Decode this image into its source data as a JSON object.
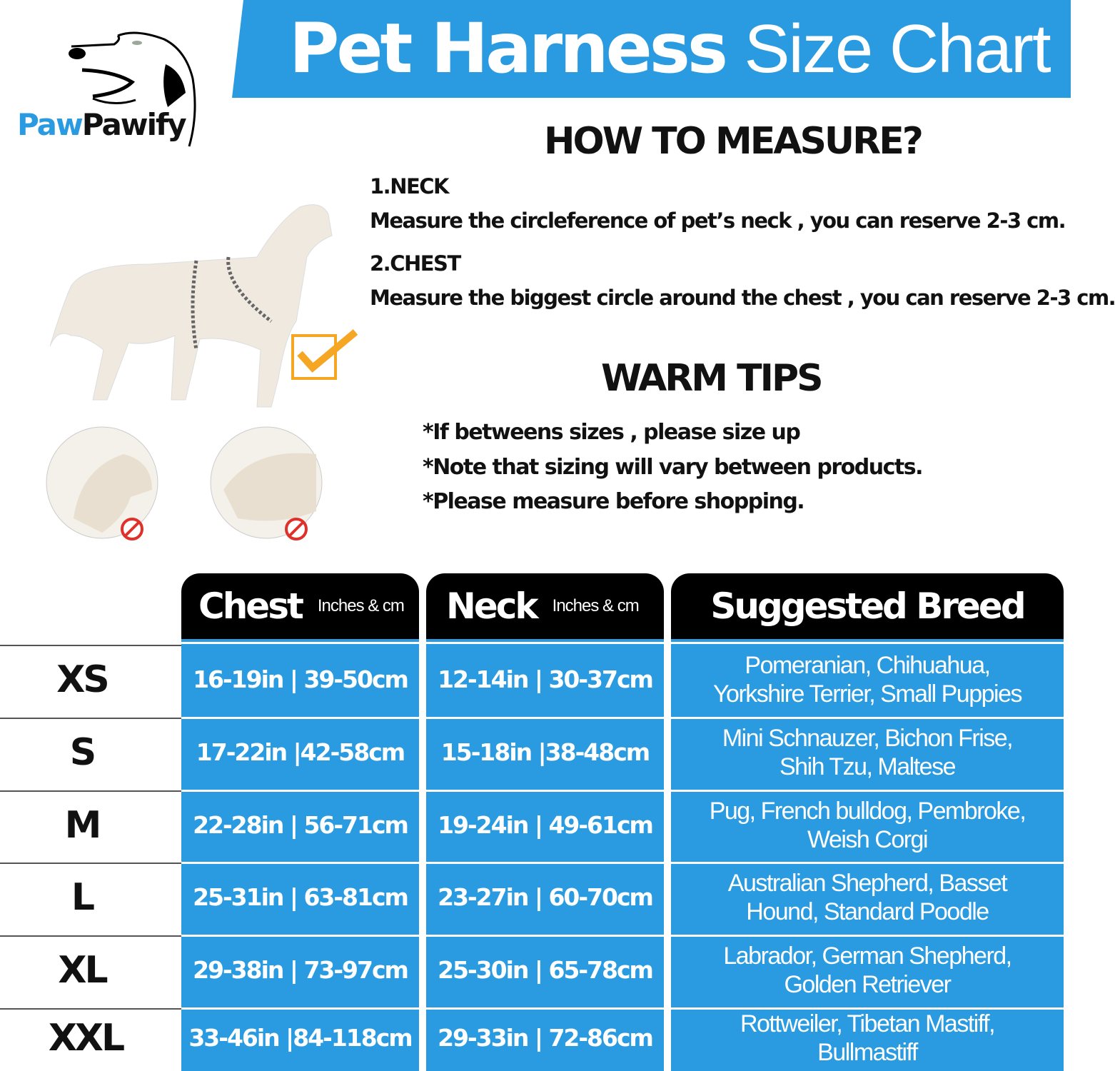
{
  "brand": {
    "part1": "Paw",
    "part2": "Pawify"
  },
  "title": {
    "bold": "Pet Harness",
    "light": "Size Chart"
  },
  "colors": {
    "accent": "#2a9be0",
    "header": "#000000",
    "check": "#f5a623",
    "forbidden": "#e0302a"
  },
  "measure": {
    "heading": "HOW TO MEASURE?",
    "steps": [
      {
        "label": "1.NECK",
        "text": "Measure the circleference of pet’s neck , you can reserve 2-3 cm."
      },
      {
        "label": "2.CHEST",
        "text": "Measure the biggest circle around the chest , you can reserve 2-3 cm."
      }
    ]
  },
  "tips": {
    "heading": "WARM TIPS",
    "items": [
      "*If betweens sizes , please size up",
      "*Note that sizing will vary between products.",
      "*Please measure before shopping."
    ]
  },
  "table": {
    "headers": [
      {
        "title": "Chest",
        "unit": "Inches & cm"
      },
      {
        "title": "Neck",
        "unit": "Inches & cm"
      },
      {
        "title": "Suggested Breed"
      }
    ],
    "rows": [
      {
        "size": "XS",
        "chest": "16-19in | 39-50cm",
        "neck": "12-14in | 30-37cm",
        "breed1": "Pomeranian,  Chihuahua,",
        "breed2": "Yorkshire Terrier,  Small Puppies"
      },
      {
        "size": "S",
        "chest": "17-22in |42-58cm",
        "neck": "15-18in |38-48cm",
        "breed1": "Mini Schnauzer,  Bichon Frise,",
        "breed2": "Shih Tzu,  Maltese"
      },
      {
        "size": "M",
        "chest": "22-28in | 56-71cm",
        "neck": "19-24in | 49-61cm",
        "breed1": "Pug,  French bulldog,  Pembroke,",
        "breed2": "Weish Corgi"
      },
      {
        "size": "L",
        "chest": "25-31in | 63-81cm",
        "neck": "23-27in | 60-70cm",
        "breed1": "Australian Shepherd,  Basset",
        "breed2": "Hound,  Standard Poodle"
      },
      {
        "size": "XL",
        "chest": "29-38in | 73-97cm",
        "neck": "25-30in | 65-78cm",
        "breed1": "Labrador,  German Shepherd,",
        "breed2": "Golden Retriever"
      },
      {
        "size": "XXL",
        "chest": "33-46in |84-118cm",
        "neck": "29-33in | 72-86cm",
        "breed1": "Rottweiler,  Tibetan Mastiff,",
        "breed2": "Bullmastiff"
      }
    ]
  }
}
